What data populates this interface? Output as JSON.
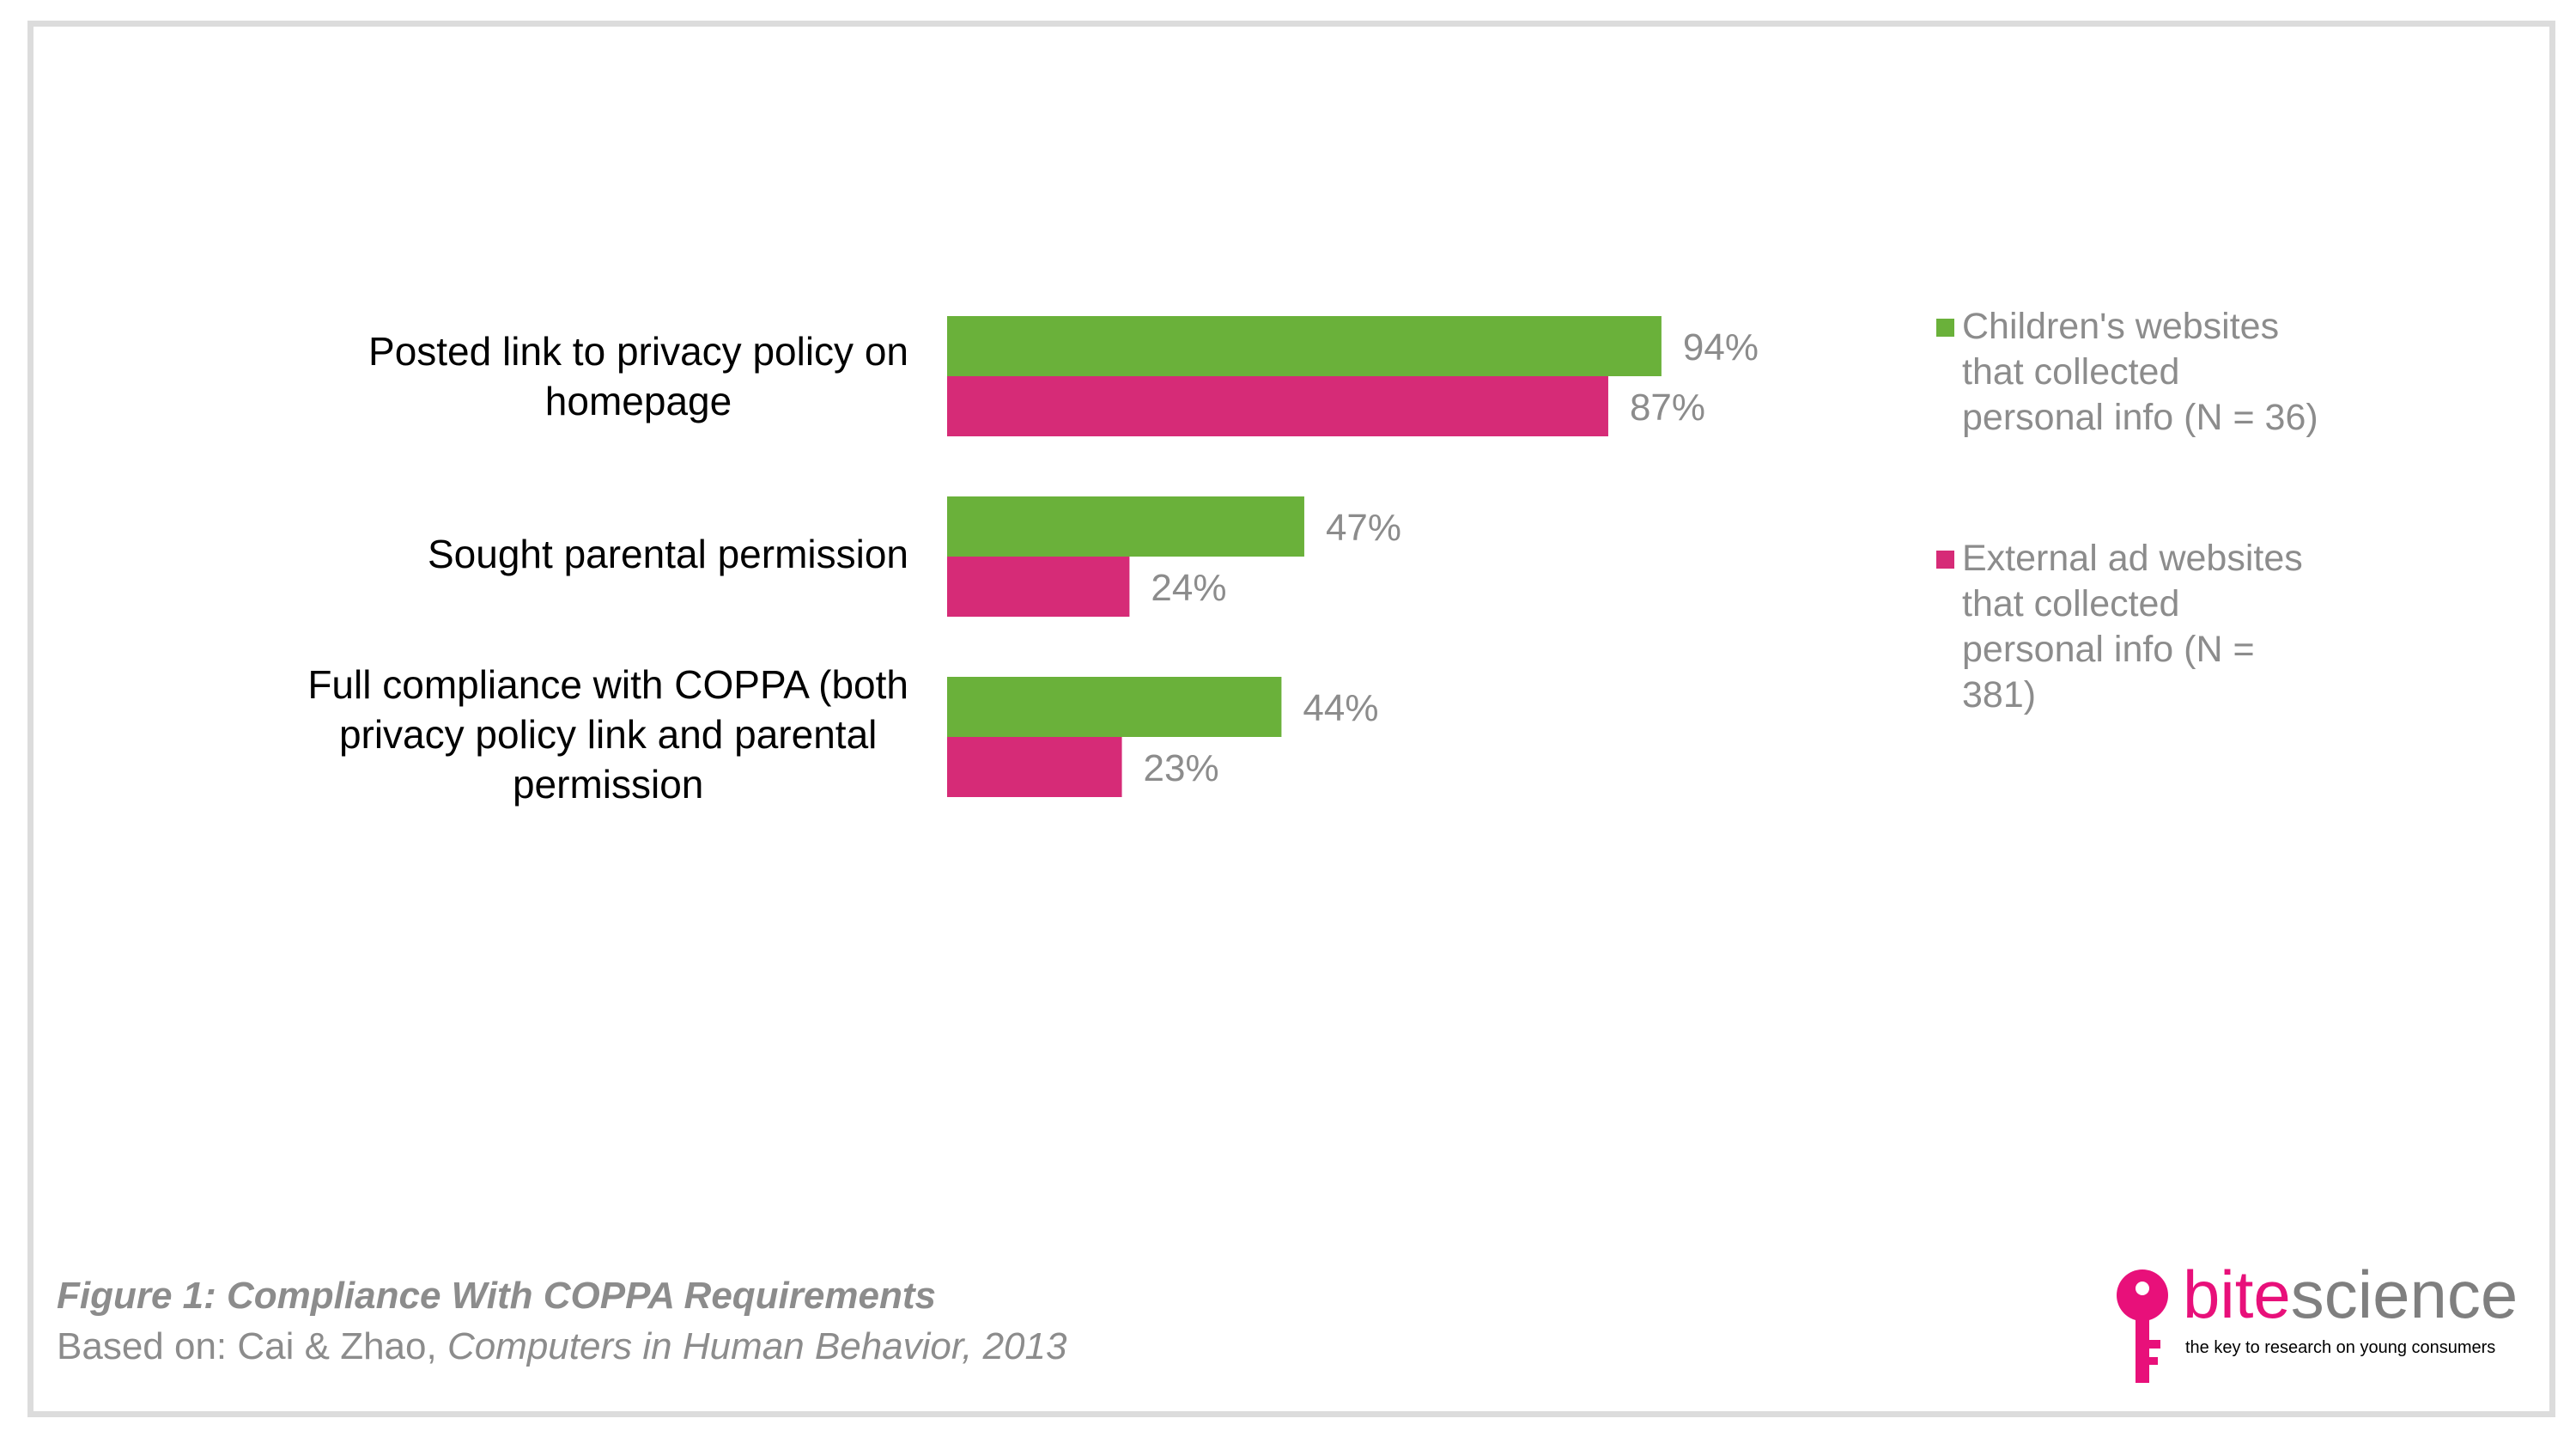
{
  "chart_data": {
    "type": "bar",
    "orientation": "horizontal",
    "categories": [
      "Posted link to privacy policy on\nhomepage",
      "Sought parental permission",
      "Full compliance with COPPA (both\nprivacy policy link and parental\npermission"
    ],
    "series": [
      {
        "name": "Children's websites that collected personal info (N = 36)",
        "color": "#6ab13a",
        "values": [
          94,
          47,
          44
        ]
      },
      {
        "name": "External ad websites that collected personal info (N = 381)",
        "color": "#d62b77",
        "values": [
          87,
          24,
          23
        ]
      }
    ],
    "data_labels": [
      [
        "94%",
        "47%",
        "44%"
      ],
      [
        "87%",
        "24%",
        "23%"
      ]
    ],
    "xlim": [
      0,
      100
    ],
    "grid": false,
    "legend_position": "right"
  },
  "caption": {
    "title": "Figure 1: Compliance With COPPA Requirements",
    "source_prefix": "Based on: Cai & Zhao, ",
    "source_journal": "Computers in Human Behavior, 2013"
  },
  "logo": {
    "word_accent": "bite",
    "word_rest": "science",
    "tagline": "the key to research on young consumers"
  }
}
